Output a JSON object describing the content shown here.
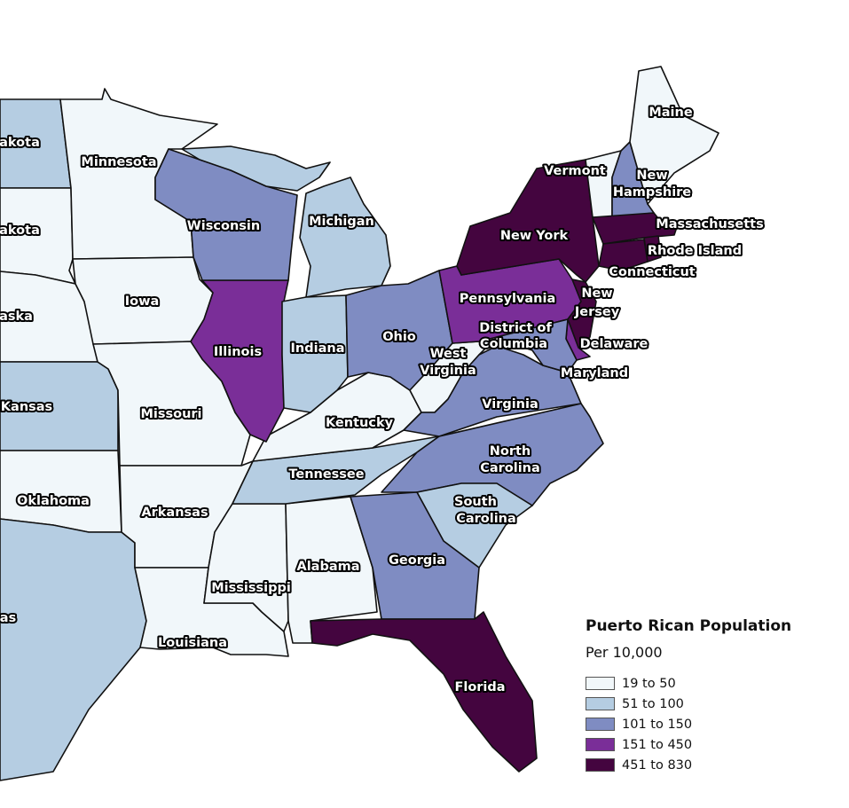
{
  "legend": {
    "title": "Puerto Rican Population",
    "subtitle": "Per 10,000",
    "bins": [
      {
        "label": "19 to 50",
        "color": "#f1f7fa"
      },
      {
        "label": "51 to 100",
        "color": "#b5cde2"
      },
      {
        "label": "101 to 150",
        "color": "#7f8cc2"
      },
      {
        "label": "151 to 450",
        "color": "#7a2e98"
      },
      {
        "label": "451 to 830",
        "color": "#44053f"
      }
    ]
  },
  "states": {
    "nd": {
      "label": [
        "akota"
      ],
      "bin": 1
    },
    "sd": {
      "label": [
        "akota"
      ],
      "bin": 0
    },
    "ne": {
      "label": [
        "aska"
      ],
      "bin": 0
    },
    "ks": {
      "label": [
        "Kansas"
      ],
      "bin": 1
    },
    "ok": {
      "label": [
        "Oklahoma"
      ],
      "bin": 0
    },
    "tx": {
      "label": [
        "as"
      ],
      "bin": 1
    },
    "mn": {
      "label": [
        "Minnesota"
      ],
      "bin": 0
    },
    "ia": {
      "label": [
        "Iowa"
      ],
      "bin": 0
    },
    "mo": {
      "label": [
        "Missouri"
      ],
      "bin": 0
    },
    "ar": {
      "label": [
        "Arkansas"
      ],
      "bin": 0
    },
    "la": {
      "label": [
        "Louisiana"
      ],
      "bin": 0
    },
    "ms": {
      "label": [
        "Mississippi"
      ],
      "bin": 0
    },
    "al": {
      "label": [
        "Alabama"
      ],
      "bin": 0
    },
    "tn": {
      "label": [
        "Tennessee"
      ],
      "bin": 1
    },
    "ky": {
      "label": [
        "Kentucky"
      ],
      "bin": 0
    },
    "il": {
      "label": [
        "Illinois"
      ],
      "bin": 3
    },
    "wi": {
      "label": [
        "Wisconsin"
      ],
      "bin": 2
    },
    "mi": {
      "label": [
        "Michigan"
      ],
      "bin": 1
    },
    "in": {
      "label": [
        "Indiana"
      ],
      "bin": 1
    },
    "oh": {
      "label": [
        "Ohio"
      ],
      "bin": 2
    },
    "wv": {
      "label": [
        "West",
        "Virginia"
      ],
      "bin": 0
    },
    "va": {
      "label": [
        "Virginia"
      ],
      "bin": 2
    },
    "nc": {
      "label": [
        "North",
        "Carolina"
      ],
      "bin": 2
    },
    "sc": {
      "label": [
        "South",
        "Carolina"
      ],
      "bin": 1
    },
    "ga": {
      "label": [
        "Georgia"
      ],
      "bin": 2
    },
    "fl": {
      "label": [
        "Florida"
      ],
      "bin": 4
    },
    "pa": {
      "label": [
        "Pennsylvania"
      ],
      "bin": 3
    },
    "ny": {
      "label": [
        "New York"
      ],
      "bin": 4
    },
    "nj": {
      "label": [
        "New",
        "Jersey"
      ],
      "bin": 4
    },
    "de": {
      "label": [
        "Delaware"
      ],
      "bin": 3
    },
    "md": {
      "label": [
        "Maryland"
      ],
      "bin": 2
    },
    "dc": {
      "label": [
        "District of",
        "Columbia"
      ],
      "bin": 0
    },
    "vt": {
      "label": [
        "Vermont"
      ],
      "bin": 0
    },
    "nh": {
      "label": [
        "New",
        "Hampshire"
      ],
      "bin": 2
    },
    "me": {
      "label": [
        "Maine"
      ],
      "bin": 0
    },
    "ma": {
      "label": [
        "Massachusetts"
      ],
      "bin": 4
    },
    "ct": {
      "label": [
        "Connecticut"
      ],
      "bin": 4
    },
    "ri": {
      "label": [
        "Rhode Island"
      ],
      "bin": 4
    }
  }
}
